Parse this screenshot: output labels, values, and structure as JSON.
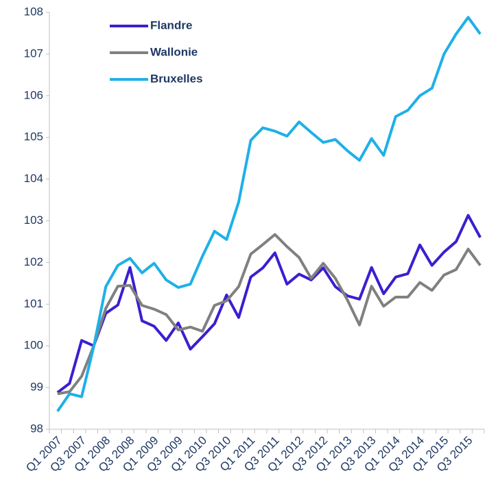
{
  "chart_data": {
    "type": "line",
    "categories": [
      "Q1 2007",
      null,
      "Q3 2007",
      null,
      "Q1 2008",
      null,
      "Q3 2008",
      null,
      "Q1 2009",
      null,
      "Q3 2009",
      null,
      "Q1 2010",
      null,
      "Q3 2010",
      null,
      "Q1 2011",
      null,
      "Q3 2011",
      null,
      "Q1 2012",
      null,
      "Q3 2012",
      null,
      "Q1 2013",
      null,
      "Q3 2013",
      null,
      "Q1 2014",
      null,
      "Q3 2014",
      null,
      "Q1 2015",
      null,
      "Q3 2015",
      null
    ],
    "series": [
      {
        "name": "Flandre",
        "color": "#3a1fd0",
        "values": [
          98.88,
          99.1,
          100.13,
          100.0,
          100.78,
          100.98,
          101.88,
          100.6,
          100.47,
          100.13,
          100.55,
          99.92,
          100.22,
          100.53,
          101.22,
          100.68,
          101.65,
          101.87,
          102.23,
          101.48,
          101.72,
          101.58,
          101.87,
          101.42,
          101.2,
          101.12,
          101.88,
          101.25,
          101.65,
          101.73,
          102.42,
          101.93,
          102.25,
          102.5,
          103.13,
          102.6
        ]
      },
      {
        "name": "Wallonie",
        "color": "#808080",
        "values": [
          98.85,
          98.9,
          99.27,
          100.0,
          100.9,
          101.43,
          101.45,
          100.97,
          100.88,
          100.75,
          100.38,
          100.45,
          100.35,
          100.97,
          101.08,
          101.42,
          102.2,
          102.43,
          102.67,
          102.38,
          102.12,
          101.62,
          101.98,
          101.62,
          101.1,
          100.5,
          101.43,
          100.95,
          101.17,
          101.17,
          101.52,
          101.33,
          101.7,
          101.83,
          102.32,
          101.93
        ]
      },
      {
        "name": "Bruxelles",
        "color": "#1eb0e8",
        "values": [
          98.43,
          98.85,
          98.78,
          99.98,
          101.42,
          101.93,
          102.1,
          101.75,
          101.98,
          101.58,
          101.4,
          101.48,
          102.15,
          102.75,
          102.55,
          103.45,
          104.93,
          105.23,
          105.15,
          105.03,
          105.37,
          105.12,
          104.88,
          104.95,
          104.68,
          104.45,
          104.97,
          104.57,
          105.5,
          105.65,
          106.0,
          106.18,
          107.0,
          107.48,
          107.88,
          107.48
        ]
      }
    ],
    "ylim": [
      98,
      108
    ],
    "yticks": [
      98,
      99,
      100,
      101,
      102,
      103,
      104,
      105,
      106,
      107,
      108
    ],
    "grid": false
  }
}
